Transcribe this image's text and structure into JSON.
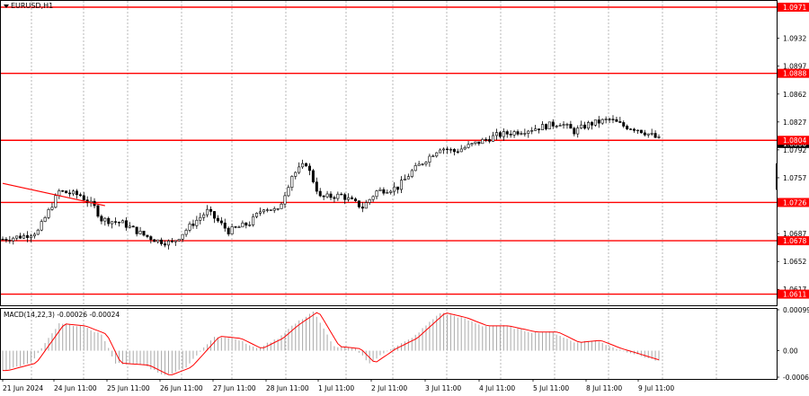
{
  "window": {
    "symbol_title": "EURUSD,H1"
  },
  "indicator": {
    "label": "MACD(14,22,3) -0.00026 -0.00024"
  },
  "price_axis": {
    "ticks": [
      "1.0971",
      "1.0932",
      "1.0897",
      "1.0862",
      "1.0827",
      "1.0792",
      "1.0757",
      "1.0726",
      "1.0687",
      "1.0652",
      "1.0617"
    ],
    "current_price": "1.0800"
  },
  "levels": [
    {
      "price": "1.0971"
    },
    {
      "price": "1.0888"
    },
    {
      "price": "1.0804"
    },
    {
      "price": "1.0726"
    },
    {
      "price": "1.0678"
    },
    {
      "price": "1.0611"
    }
  ],
  "macd_axis": {
    "ticks": [
      "0.00099",
      "0.00",
      "-0.00064"
    ]
  },
  "time_axis": {
    "labels": [
      "21 Jun 2024",
      "24 Jun 11:00",
      "25 Jun 11:00",
      "26 Jun 11:00",
      "27 Jun 11:00",
      "28 Jun 11:00",
      "1 Jul 11:00",
      "2 Jul 11:00",
      "3 Jul 11:00",
      "4 Jul 11:00",
      "5 Jul 11:00",
      "8 Jul 11:00",
      "9 Jul 11:00"
    ]
  },
  "colors": {
    "level_line": "#ff0000",
    "grid": "#9a9a9a",
    "candle": "#000000",
    "macd_hist": "#a8a8a8",
    "signal": "#ff0000",
    "label_text_bg": "#ff0000"
  },
  "chart_data": {
    "type": "candlestick",
    "title": "EURUSD,H1",
    "price_keypoints": [
      {
        "t": 0,
        "p": 1.068
      },
      {
        "t": 6,
        "p": 1.0684
      },
      {
        "t": 10,
        "p": 1.069
      },
      {
        "t": 16,
        "p": 1.074
      },
      {
        "t": 22,
        "p": 1.0735
      },
      {
        "t": 26,
        "p": 1.072
      },
      {
        "t": 28,
        "p": 1.0705
      },
      {
        "t": 34,
        "p": 1.07
      },
      {
        "t": 40,
        "p": 1.0685
      },
      {
        "t": 44,
        "p": 1.0678
      },
      {
        "t": 48,
        "p": 1.0675
      },
      {
        "t": 54,
        "p": 1.07
      },
      {
        "t": 58,
        "p": 1.0715
      },
      {
        "t": 64,
        "p": 1.069
      },
      {
        "t": 70,
        "p": 1.07
      },
      {
        "t": 74,
        "p": 1.072
      },
      {
        "t": 78,
        "p": 1.0715
      },
      {
        "t": 82,
        "p": 1.076
      },
      {
        "t": 86,
        "p": 1.0775
      },
      {
        "t": 90,
        "p": 1.0732
      },
      {
        "t": 96,
        "p": 1.0735
      },
      {
        "t": 102,
        "p": 1.072
      },
      {
        "t": 106,
        "p": 1.074
      },
      {
        "t": 112,
        "p": 1.0745
      },
      {
        "t": 116,
        "p": 1.0765
      },
      {
        "t": 120,
        "p": 1.078
      },
      {
        "t": 124,
        "p": 1.0795
      },
      {
        "t": 128,
        "p": 1.079
      },
      {
        "t": 134,
        "p": 1.08
      },
      {
        "t": 140,
        "p": 1.081
      },
      {
        "t": 146,
        "p": 1.0815
      },
      {
        "t": 152,
        "p": 1.082
      },
      {
        "t": 158,
        "p": 1.0826
      },
      {
        "t": 162,
        "p": 1.0815
      },
      {
        "t": 166,
        "p": 1.0824
      },
      {
        "t": 172,
        "p": 1.083
      },
      {
        "t": 176,
        "p": 1.0822
      },
      {
        "t": 180,
        "p": 1.0818
      },
      {
        "t": 184,
        "p": 1.081
      },
      {
        "t": 186,
        "p": 1.0805
      }
    ],
    "trendline": {
      "from": {
        "t": 0,
        "p": 1.075
      },
      "to": {
        "t": 29,
        "p": 1.0722
      }
    },
    "macd_keypoints": [
      {
        "t": 0,
        "v": -0.00048
      },
      {
        "t": 8,
        "v": -0.0003
      },
      {
        "t": 16,
        "v": 0.00065
      },
      {
        "t": 22,
        "v": 0.0006
      },
      {
        "t": 28,
        "v": 0.0004
      },
      {
        "t": 32,
        "v": -0.0003
      },
      {
        "t": 40,
        "v": -0.00035
      },
      {
        "t": 46,
        "v": -0.0006
      },
      {
        "t": 52,
        "v": -0.0004
      },
      {
        "t": 60,
        "v": 0.00035
      },
      {
        "t": 66,
        "v": 0.0003
      },
      {
        "t": 72,
        "v": 5e-05
      },
      {
        "t": 78,
        "v": 0.0003
      },
      {
        "t": 82,
        "v": 0.0006
      },
      {
        "t": 88,
        "v": 0.00095
      },
      {
        "t": 94,
        "v": 0.0001
      },
      {
        "t": 100,
        "v": 5e-05
      },
      {
        "t": 104,
        "v": -0.0003
      },
      {
        "t": 110,
        "v": 5e-05
      },
      {
        "t": 116,
        "v": 0.0003
      },
      {
        "t": 124,
        "v": 0.00092
      },
      {
        "t": 130,
        "v": 0.0008
      },
      {
        "t": 136,
        "v": 0.0006
      },
      {
        "t": 142,
        "v": 0.0006
      },
      {
        "t": 150,
        "v": 0.00045
      },
      {
        "t": 156,
        "v": 0.00045
      },
      {
        "t": 162,
        "v": 0.0002
      },
      {
        "t": 168,
        "v": 0.00025
      },
      {
        "t": 174,
        "v": 5e-05
      },
      {
        "t": 178,
        "v": -5e-05
      },
      {
        "t": 186,
        "v": -0.00026
      }
    ],
    "price_range": [
      1.0597,
      1.098
    ],
    "macd_range": [
      -0.00064,
      0.00099
    ]
  }
}
